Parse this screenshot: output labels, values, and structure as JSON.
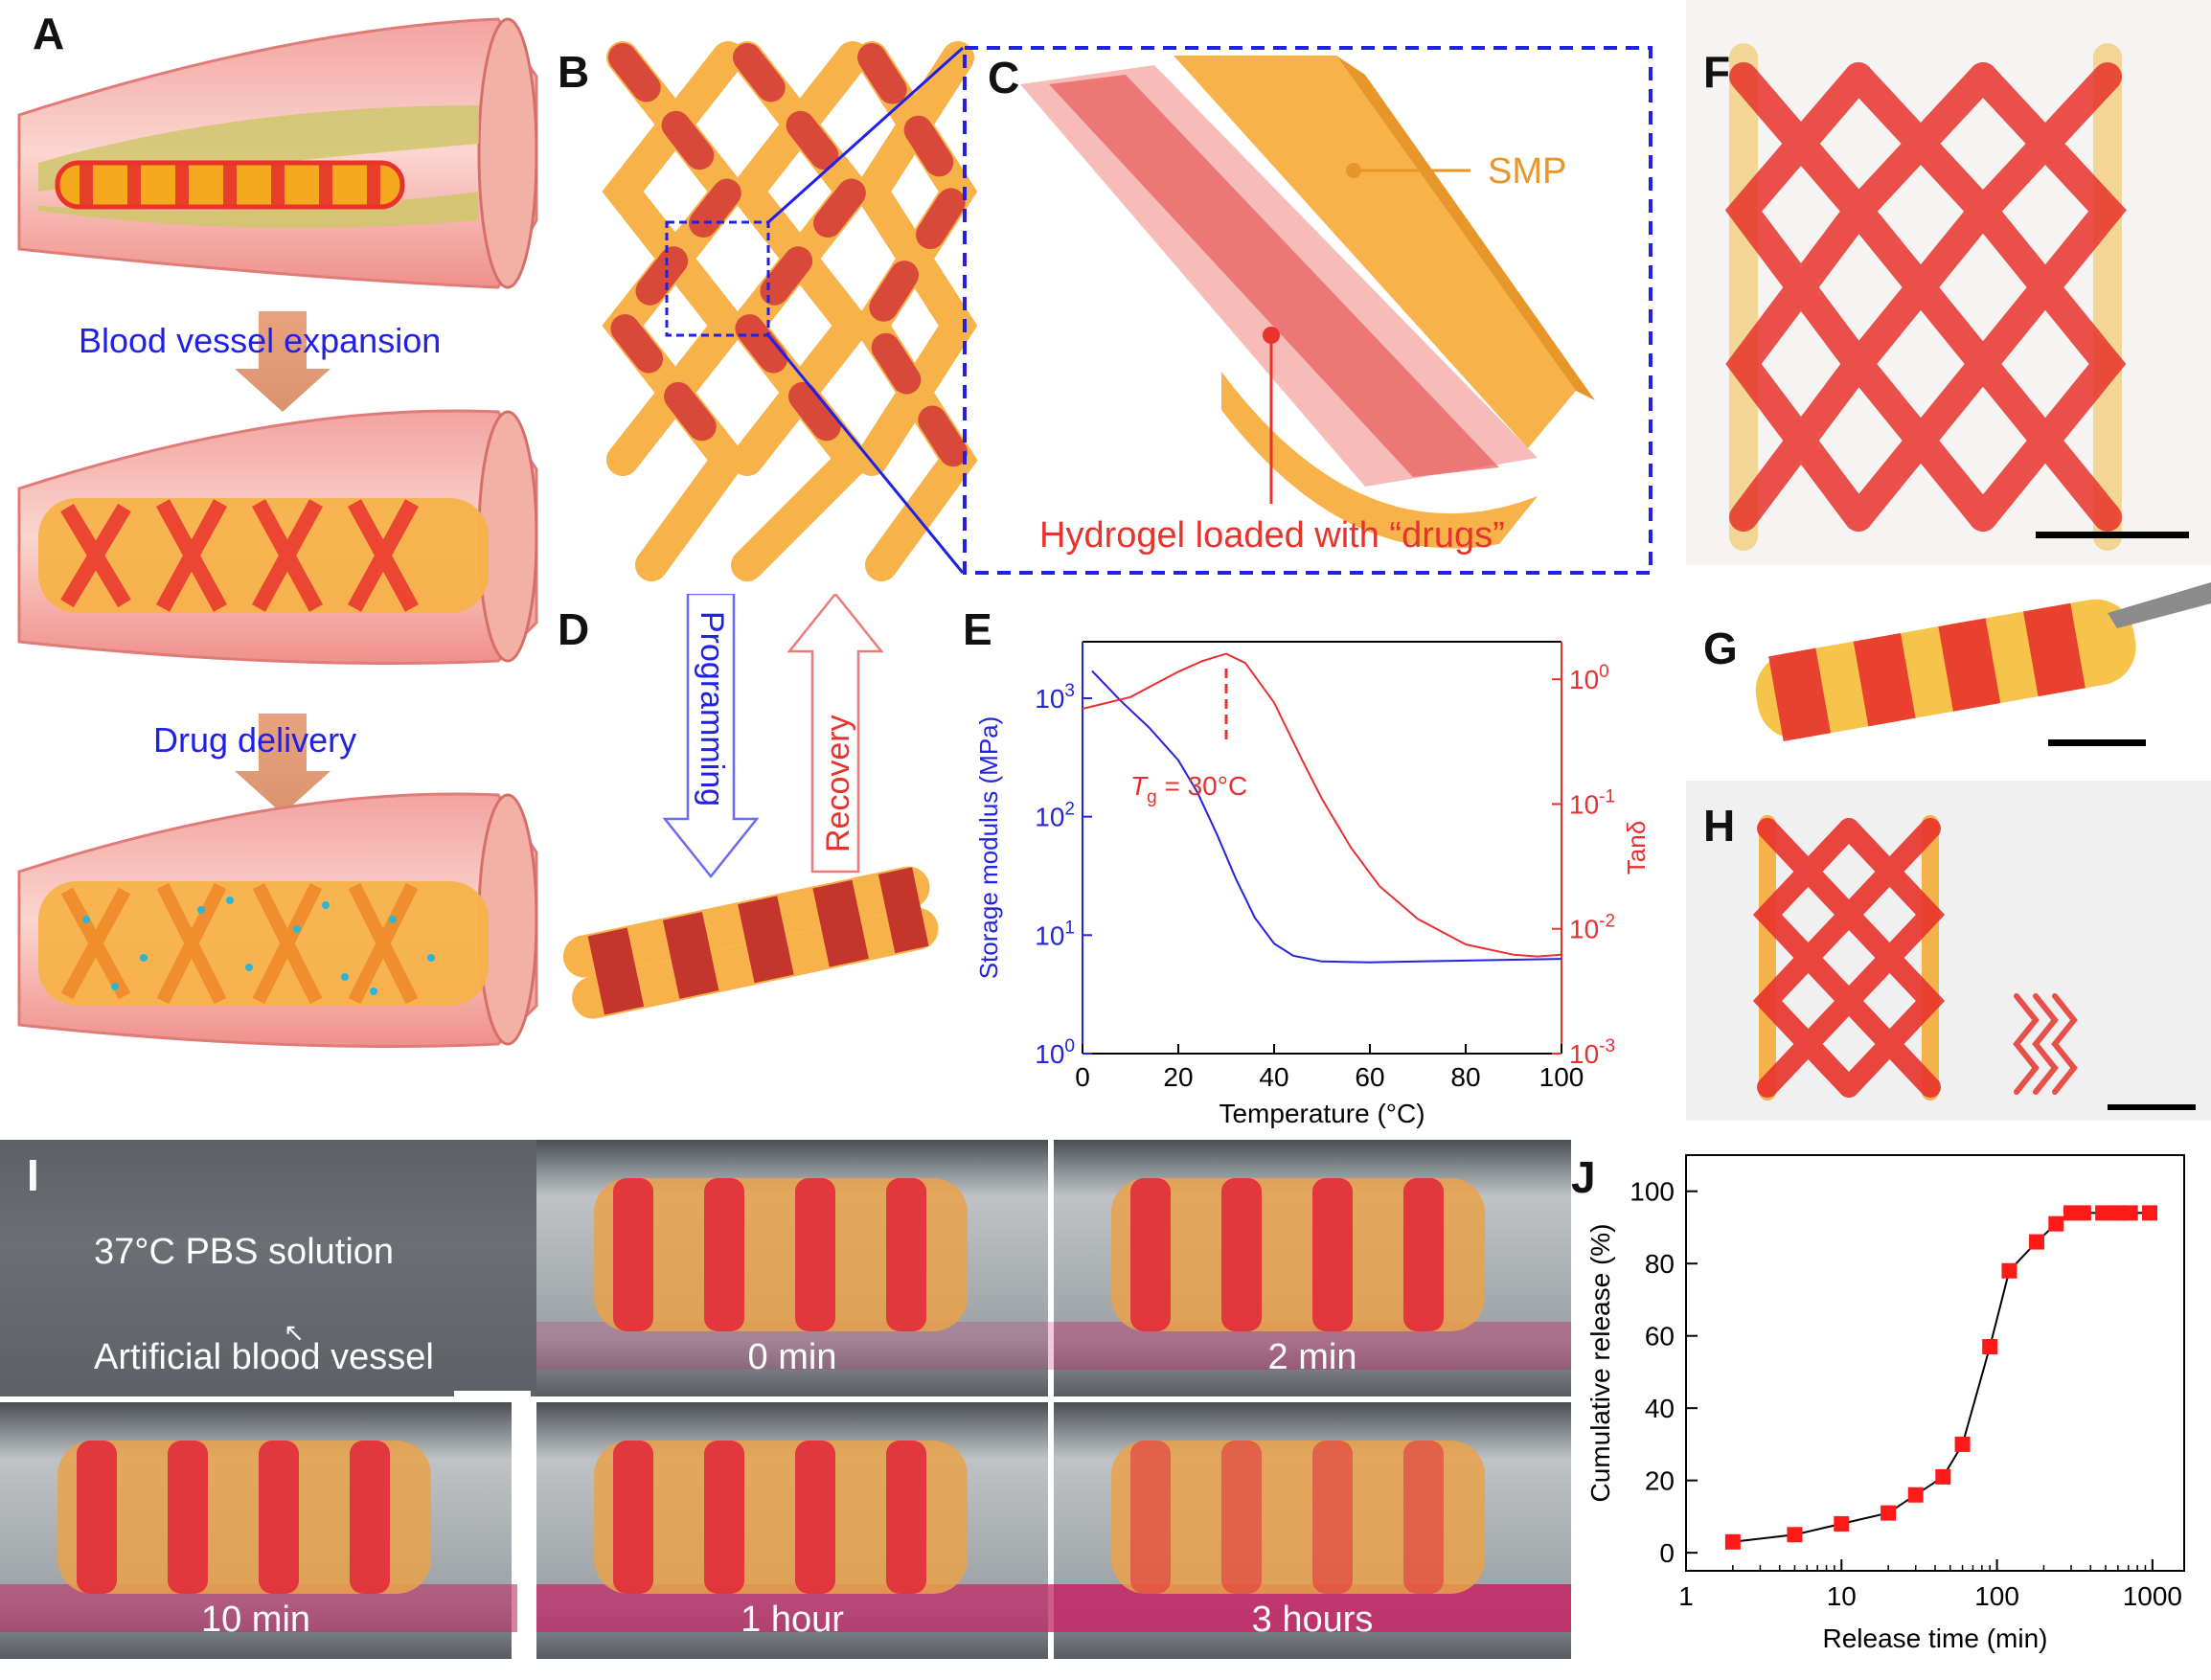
{
  "panels": {
    "A": {
      "label": "A",
      "caption_expansion": "Blood vessel expansion",
      "caption_delivery": "Drug delivery"
    },
    "B": {
      "label": "B"
    },
    "C": {
      "label": "C",
      "smp_label": "SMP",
      "hydrogel_label": "Hydrogel loaded with “drugs”"
    },
    "D": {
      "label": "D",
      "programming_label": "Programming",
      "recovery_label": "Recovery"
    },
    "E": {
      "label": "E"
    },
    "F": {
      "label": "F"
    },
    "G": {
      "label": "G"
    },
    "H": {
      "label": "H"
    },
    "I": {
      "label": "I",
      "solution_label": "37°C PBS solution",
      "vessel_label": "Artificial blood vessel",
      "times": [
        "0 min",
        "2 min",
        "10 min",
        "1 hour",
        "3 hours"
      ]
    },
    "J": {
      "label": "J"
    }
  },
  "colors": {
    "smp_orange": "#f7b24a",
    "hydrogel_red": "#e8332c",
    "modulus_blue": "#2323e0",
    "tan_red": "#e83030",
    "marker_red": "#ff1a1a",
    "caption_blue": "#2020e6"
  },
  "chart_data": [
    {
      "id": "E",
      "type": "line",
      "xlabel": "Temperature (°C)",
      "ylabel": "Storage modulus (MPa)",
      "y2label": "Tanδ",
      "xlim": [
        0,
        100
      ],
      "ylim": [
        1,
        3000
      ],
      "y2lim": [
        0.001,
        2
      ],
      "yscale": "log",
      "y2scale": "log",
      "xticks": [
        0,
        20,
        40,
        60,
        80,
        100
      ],
      "yticks": [
        1,
        10,
        100,
        1000
      ],
      "ytick_labels": [
        "10^0",
        "10^1",
        "10^2",
        "10^3"
      ],
      "y2ticks": [
        0.001,
        0.01,
        0.1,
        1
      ],
      "y2tick_labels": [
        "10^-3",
        "10^-2",
        "10^-1",
        "10^0"
      ],
      "annotation": {
        "x": 30,
        "text_prefix": "T",
        "text_sub": "g",
        "text_suffix": " = 30°C"
      },
      "series": [
        {
          "axis": "left",
          "x": [
            2,
            8,
            14,
            20,
            24,
            28,
            32,
            36,
            40,
            44,
            50,
            60,
            70,
            80,
            90,
            100
          ],
          "values": [
            1700,
            950,
            560,
            300,
            160,
            72,
            30,
            14,
            8.5,
            6.7,
            6.0,
            5.9,
            6.0,
            6.1,
            6.2,
            6.3
          ]
        },
        {
          "axis": "right",
          "x": [
            0,
            10,
            20,
            25,
            30,
            34,
            40,
            46,
            50,
            56,
            62,
            70,
            80,
            90,
            95,
            100
          ],
          "values": [
            0.58,
            0.72,
            1.15,
            1.4,
            1.6,
            1.35,
            0.65,
            0.22,
            0.11,
            0.045,
            0.022,
            0.012,
            0.0075,
            0.0062,
            0.006,
            0.0062
          ]
        }
      ]
    },
    {
      "id": "J",
      "type": "scatter",
      "xlabel": "Release time (min)",
      "ylabel": "Cumulative release (%)",
      "xlim": [
        1,
        1600
      ],
      "xscale": "log",
      "ylim": [
        -5,
        110
      ],
      "xticks": [
        1,
        10,
        100,
        1000
      ],
      "yticks": [
        0,
        20,
        40,
        60,
        80,
        100
      ],
      "x": [
        2,
        5,
        10,
        20,
        30,
        45,
        60,
        90,
        120,
        180,
        240,
        300,
        360,
        480,
        600,
        720,
        960
      ],
      "values": [
        3,
        5,
        8,
        11,
        16,
        21,
        30,
        57,
        78,
        86,
        91,
        94,
        94,
        94,
        94,
        94,
        94
      ]
    }
  ]
}
